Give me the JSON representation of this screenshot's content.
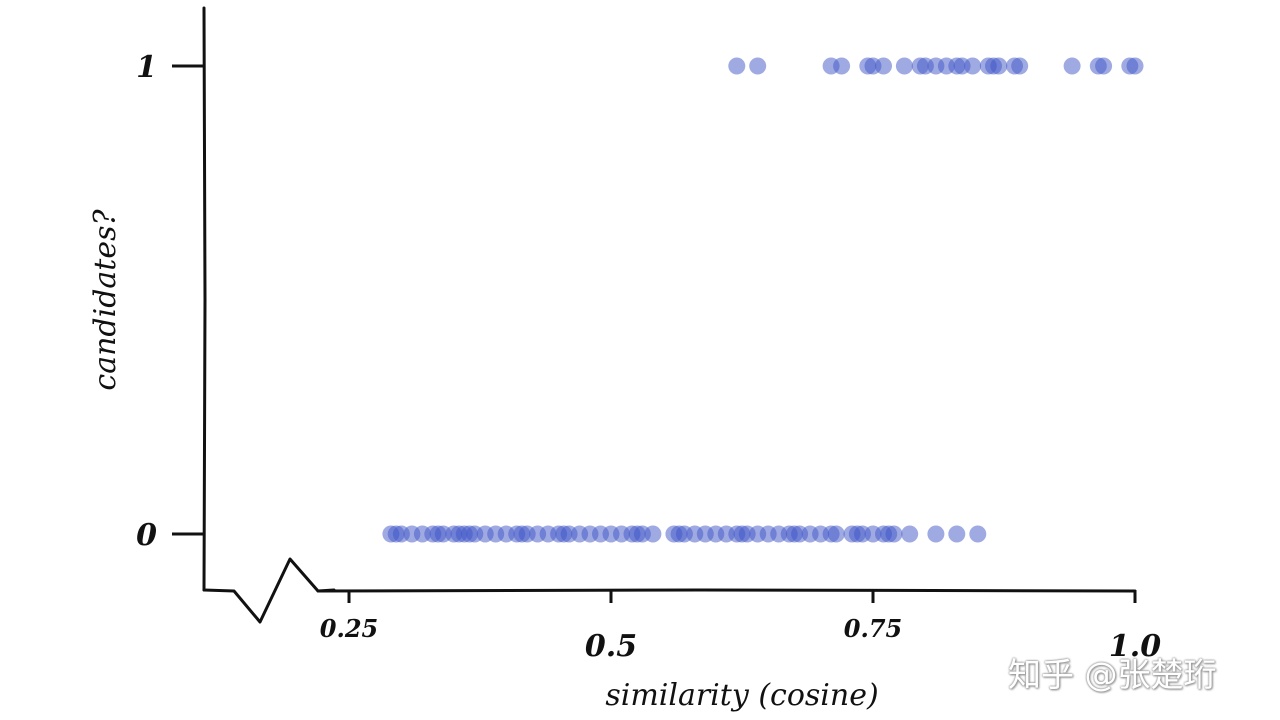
{
  "chart_data": {
    "type": "scatter",
    "xlabel": "similarity (cosine)",
    "ylabel": "candidates?",
    "xlim": [
      0.13,
      1.0
    ],
    "ylim": [
      -0.12,
      1.12
    ],
    "x_ticks": [
      {
        "value": 0.25,
        "label": "0.25"
      },
      {
        "value": 0.5,
        "label": "0.5"
      },
      {
        "value": 0.75,
        "label": "0.75"
      },
      {
        "value": 1.0,
        "label": "1.0"
      }
    ],
    "y_ticks": [
      {
        "value": 0,
        "label": "0"
      },
      {
        "value": 1,
        "label": "1"
      }
    ],
    "axis_break": true,
    "grid": false,
    "marker_color": "#3f56c8",
    "series": [
      {
        "points": [
          {
            "x": 0.29,
            "y": 0
          },
          {
            "x": 0.295,
            "y": 0
          },
          {
            "x": 0.3,
            "y": 0
          },
          {
            "x": 0.31,
            "y": 0
          },
          {
            "x": 0.32,
            "y": 0
          },
          {
            "x": 0.33,
            "y": 0
          },
          {
            "x": 0.335,
            "y": 0
          },
          {
            "x": 0.34,
            "y": 0
          },
          {
            "x": 0.35,
            "y": 0
          },
          {
            "x": 0.355,
            "y": 0
          },
          {
            "x": 0.36,
            "y": 0
          },
          {
            "x": 0.365,
            "y": 0
          },
          {
            "x": 0.37,
            "y": 0
          },
          {
            "x": 0.38,
            "y": 0
          },
          {
            "x": 0.39,
            "y": 0
          },
          {
            "x": 0.4,
            "y": 0
          },
          {
            "x": 0.41,
            "y": 0
          },
          {
            "x": 0.415,
            "y": 0
          },
          {
            "x": 0.42,
            "y": 0
          },
          {
            "x": 0.43,
            "y": 0
          },
          {
            "x": 0.44,
            "y": 0
          },
          {
            "x": 0.45,
            "y": 0
          },
          {
            "x": 0.455,
            "y": 0
          },
          {
            "x": 0.46,
            "y": 0
          },
          {
            "x": 0.47,
            "y": 0
          },
          {
            "x": 0.48,
            "y": 0
          },
          {
            "x": 0.49,
            "y": 0
          },
          {
            "x": 0.5,
            "y": 0
          },
          {
            "x": 0.51,
            "y": 0
          },
          {
            "x": 0.52,
            "y": 0
          },
          {
            "x": 0.525,
            "y": 0
          },
          {
            "x": 0.53,
            "y": 0
          },
          {
            "x": 0.54,
            "y": 0
          },
          {
            "x": 0.56,
            "y": 0
          },
          {
            "x": 0.565,
            "y": 0
          },
          {
            "x": 0.57,
            "y": 0
          },
          {
            "x": 0.58,
            "y": 0
          },
          {
            "x": 0.59,
            "y": 0
          },
          {
            "x": 0.6,
            "y": 0
          },
          {
            "x": 0.61,
            "y": 0
          },
          {
            "x": 0.62,
            "y": 0
          },
          {
            "x": 0.625,
            "y": 0
          },
          {
            "x": 0.63,
            "y": 0
          },
          {
            "x": 0.64,
            "y": 0
          },
          {
            "x": 0.65,
            "y": 0
          },
          {
            "x": 0.66,
            "y": 0
          },
          {
            "x": 0.67,
            "y": 0
          },
          {
            "x": 0.675,
            "y": 0
          },
          {
            "x": 0.68,
            "y": 0
          },
          {
            "x": 0.69,
            "y": 0
          },
          {
            "x": 0.7,
            "y": 0
          },
          {
            "x": 0.71,
            "y": 0
          },
          {
            "x": 0.715,
            "y": 0
          },
          {
            "x": 0.73,
            "y": 0
          },
          {
            "x": 0.735,
            "y": 0
          },
          {
            "x": 0.74,
            "y": 0
          },
          {
            "x": 0.75,
            "y": 0
          },
          {
            "x": 0.76,
            "y": 0
          },
          {
            "x": 0.765,
            "y": 0
          },
          {
            "x": 0.77,
            "y": 0
          },
          {
            "x": 0.785,
            "y": 0
          },
          {
            "x": 0.81,
            "y": 0
          },
          {
            "x": 0.83,
            "y": 0
          },
          {
            "x": 0.85,
            "y": 0
          },
          {
            "x": 0.62,
            "y": 1
          },
          {
            "x": 0.64,
            "y": 1
          },
          {
            "x": 0.71,
            "y": 1
          },
          {
            "x": 0.72,
            "y": 1
          },
          {
            "x": 0.745,
            "y": 1
          },
          {
            "x": 0.75,
            "y": 1
          },
          {
            "x": 0.76,
            "y": 1
          },
          {
            "x": 0.78,
            "y": 1
          },
          {
            "x": 0.795,
            "y": 1
          },
          {
            "x": 0.8,
            "y": 1
          },
          {
            "x": 0.81,
            "y": 1
          },
          {
            "x": 0.82,
            "y": 1
          },
          {
            "x": 0.83,
            "y": 1
          },
          {
            "x": 0.835,
            "y": 1
          },
          {
            "x": 0.845,
            "y": 1
          },
          {
            "x": 0.86,
            "y": 1
          },
          {
            "x": 0.865,
            "y": 1
          },
          {
            "x": 0.87,
            "y": 1
          },
          {
            "x": 0.885,
            "y": 1
          },
          {
            "x": 0.89,
            "y": 1
          },
          {
            "x": 0.94,
            "y": 1
          },
          {
            "x": 0.965,
            "y": 1
          },
          {
            "x": 0.97,
            "y": 1
          },
          {
            "x": 0.995,
            "y": 1
          },
          {
            "x": 1.0,
            "y": 1
          }
        ]
      }
    ]
  },
  "watermark": "知乎 @张楚珩"
}
